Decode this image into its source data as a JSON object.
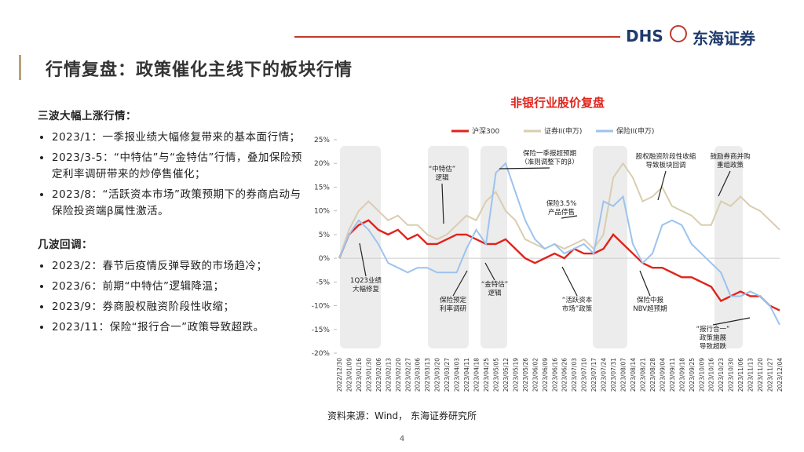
{
  "header": {
    "logo_text": "DHS",
    "logo_cn": "东海证券",
    "title": "行情复盘：政策催化主线下的板块行情"
  },
  "left": {
    "heading1": "三波大幅上涨行情：",
    "bullets1": [
      "2023/1：一季报业绩大幅修复带来的基本面行情；",
      "2023/3-5：“中特估”与“金特估”行情，叠加保险预定利率调研带来的炒停售催化；",
      "2023/8：“活跃资本市场”政策预期下的券商启动与保险投资端β属性激活。"
    ],
    "heading2": "几波回调：",
    "bullets2": [
      "2023/2：春节后疫情反弹导致的市场趋冷；",
      "2023/6：前期“中特估”逻辑降温；",
      "2023/9：券商股权融资阶段性收缩；",
      "2023/11：保险“报行合一”政策导致超跌。"
    ]
  },
  "chart_data": {
    "type": "line",
    "title": "非银行业股价复盘",
    "categories": [
      "2022/12/30",
      "2023/01/09",
      "2023/01/16",
      "2023/01/30",
      "2023/02/06",
      "2023/02/13",
      "2023/02/20",
      "2023/02/27",
      "2023/03/06",
      "2023/03/13",
      "2023/03/20",
      "2023/03/27",
      "2023/04/03",
      "2023/04/11",
      "2023/04/18",
      "2023/04/25",
      "2023/05/05",
      "2023/05/12",
      "2023/05/19",
      "2023/05/26",
      "2023/06/02",
      "2023/06/09",
      "2023/06/16",
      "2023/06/26",
      "2023/07/03",
      "2023/07/10",
      "2023/07/17",
      "2023/07/24",
      "2023/07/31",
      "2023/08/07",
      "2023/08/14",
      "2023/08/21",
      "2023/08/28",
      "2023/09/04",
      "2023/09/11",
      "2023/09/18",
      "2023/09/25",
      "2023/10/09",
      "2023/10/16",
      "2023/10/23",
      "2023/10/30",
      "2023/11/06",
      "2023/11/13",
      "2023/11/20",
      "2023/11/27",
      "2023/12/04"
    ],
    "series": [
      {
        "name": "沪深300",
        "color": "#e0231b",
        "values": [
          0,
          5,
          7,
          8,
          6,
          5,
          6,
          4,
          5,
          3,
          3,
          4,
          5,
          5,
          4,
          3,
          3,
          4,
          2,
          0,
          -1,
          0,
          1,
          0,
          2,
          1,
          1,
          2,
          5,
          3,
          1,
          -1,
          -2,
          -2,
          -3,
          -4,
          -4,
          -5,
          -6,
          -9,
          -8,
          -7,
          -8,
          -8,
          -10,
          -11
        ]
      },
      {
        "name": "证券II(申万)",
        "color": "#d9cdb0",
        "values": [
          0,
          6,
          10,
          12,
          10,
          8,
          9,
          7,
          7,
          5,
          4,
          5,
          7,
          9,
          8,
          12,
          14,
          10,
          8,
          4,
          3,
          2,
          3,
          2,
          3,
          4,
          2,
          5,
          17,
          20,
          17,
          12,
          13,
          15,
          11,
          10,
          9,
          7,
          7,
          12,
          11,
          13,
          11,
          10,
          8,
          6
        ]
      },
      {
        "name": "保险II(申万)",
        "color": "#9cc3ee",
        "values": [
          0,
          5,
          8,
          6,
          3,
          -1,
          -2,
          -3,
          -2,
          -2,
          -3,
          -3,
          -3,
          2,
          6,
          3,
          18,
          20,
          14,
          8,
          4,
          2,
          3,
          1,
          2,
          3,
          1,
          12,
          11,
          13,
          3,
          -1,
          1,
          7,
          8,
          7,
          3,
          1,
          -1,
          -3,
          -8,
          -8,
          -7,
          -8,
          -10,
          -14
        ]
      }
    ],
    "ylim": [
      -20,
      25
    ],
    "yticks": [
      {
        "value": 25,
        "label": "25%"
      },
      {
        "value": 20,
        "label": "20%"
      },
      {
        "value": 15,
        "label": "15%"
      },
      {
        "value": 10,
        "label": "10%"
      },
      {
        "value": 5,
        "label": "5%"
      },
      {
        "value": 0,
        "label": "0%"
      },
      {
        "value": -5,
        "label": "-5%"
      },
      {
        "value": -10,
        "label": "-10%"
      },
      {
        "value": -15,
        "label": "-15%"
      },
      {
        "value": -20,
        "label": "-20%"
      }
    ],
    "grid": false,
    "annotations": [
      [
        "1Q23业绩",
        "大幅修复"
      ],
      [
        "“中特估”",
        "逻辑"
      ],
      [
        "保险预定",
        "利率调研"
      ],
      [
        "“金特估”",
        "逻辑"
      ],
      [
        "保险一季报超预期",
        "（准则调整下的β）"
      ],
      [
        "保险3.5%",
        "产品停售"
      ],
      [
        "“活跃资本",
        "市场”政策"
      ],
      [
        "股权融资阶段性收缩",
        "导致板块回调"
      ],
      [
        "保险中报",
        "NBV超预期"
      ],
      [
        "鼓励券商并购",
        "重组政策"
      ],
      [
        "“报行合一”",
        "政策施展",
        "导致超跌"
      ]
    ]
  },
  "footer": {
    "source": "资料来源：Wind， 东海证券研究所",
    "page": "4"
  }
}
